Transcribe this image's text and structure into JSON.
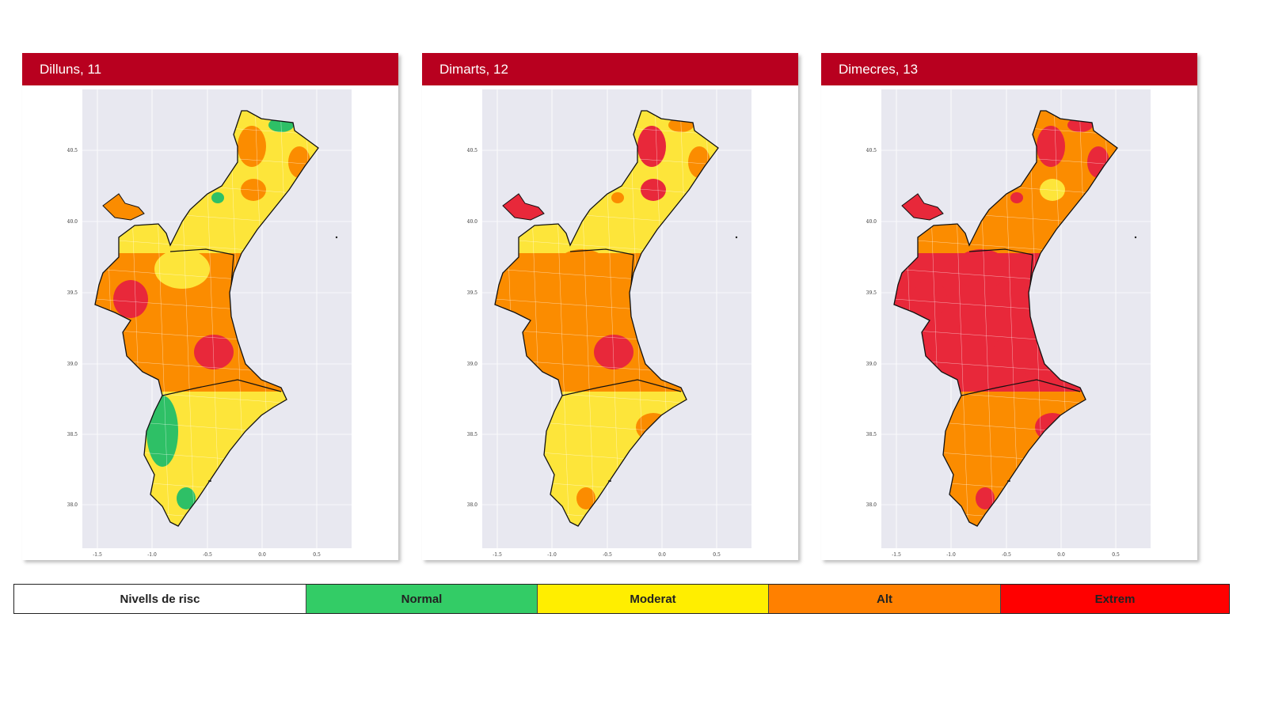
{
  "colors": {
    "header": "#b8001f",
    "plot_background": "#e8e8f0",
    "map_levels": {
      "normal": "#2ec066",
      "moderat": "#fde53a",
      "alt": "#fb8c00",
      "extrem": "#e8283a"
    }
  },
  "axes": {
    "y_ticks": [
      "40.5",
      "40.0",
      "39.5",
      "39.0",
      "38.5",
      "38.0"
    ],
    "x_ticks": [
      "-1.5",
      "-1.0",
      "-0.5",
      "0.0",
      "0.5"
    ]
  },
  "panels": [
    {
      "title": "Dilluns, 11",
      "zones": [
        "moderat",
        "alt",
        "moderat"
      ],
      "ademuz": "alt",
      "spots": [
        "normal",
        "alt",
        "alt",
        "alt",
        "normal",
        "extrem",
        "moderat",
        "extrem",
        "normal",
        "normal",
        "alt",
        "moderat"
      ]
    },
    {
      "title": "Dimarts, 12",
      "zones": [
        "moderat",
        "alt",
        "moderat"
      ],
      "ademuz": "extrem",
      "spots": [
        "alt",
        "extrem",
        "alt",
        "extrem",
        "alt",
        "alt",
        "alt",
        "extrem",
        "moderat",
        "alt",
        "alt",
        "alt"
      ]
    },
    {
      "title": "Dimecres, 13",
      "zones": [
        "alt",
        "extrem",
        "alt"
      ],
      "ademuz": "extrem",
      "spots": [
        "extrem",
        "extrem",
        "extrem",
        "moderat",
        "extrem",
        "extrem",
        "extrem",
        "extrem",
        "alt",
        "extrem",
        "extrem",
        "extrem"
      ]
    }
  ],
  "legend": {
    "title": "Nivells de risc",
    "items": [
      {
        "label": "Normal",
        "color": "#33cc66"
      },
      {
        "label": "Moderat",
        "color": "#ffee00"
      },
      {
        "label": "Alt",
        "color": "#ff8000"
      },
      {
        "label": "Extrem",
        "color": "#ff0000"
      }
    ]
  }
}
